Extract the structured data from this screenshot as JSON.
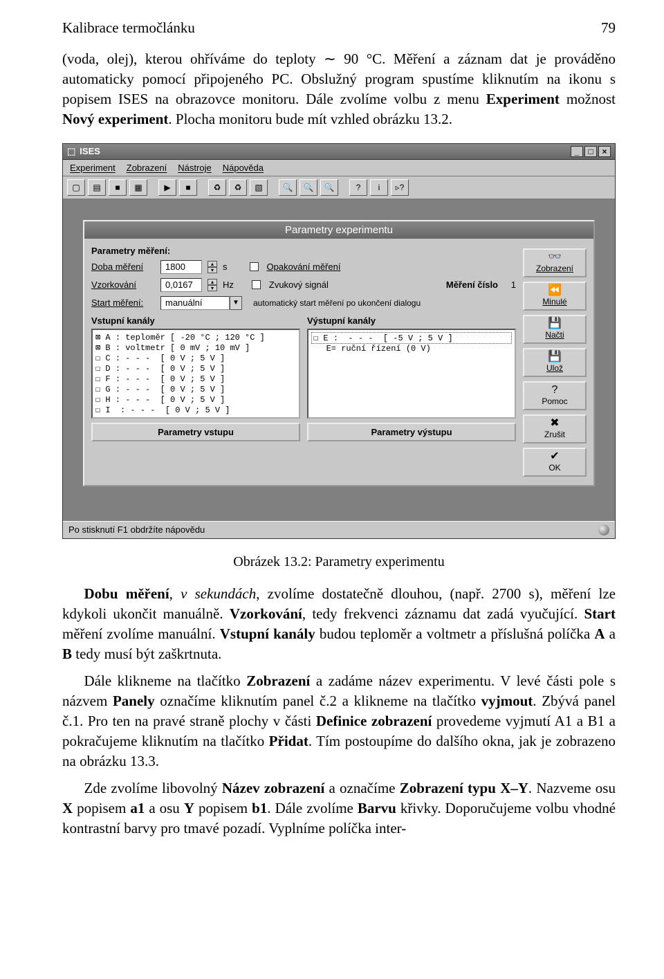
{
  "header": {
    "title": "Kalibrace termočlánku",
    "page": "79"
  },
  "para1": "(voda, olej), kterou ohříváme do teploty ∼ 90 °C. Měření a záznam dat je prováděno automaticky pomocí připojeného PC. Obslužný program spustíme kliknutím na ikonu s popisem ISES na obrazovce monitoru. Dále zvolíme volbu z menu ",
  "para1b": " možnost ",
  "para1c": ". Plocha monitoru bude mít vzhled obrázku 13.2.",
  "bold_experiment": "Experiment",
  "bold_novy": "Nový experiment",
  "app": {
    "title": "ISES",
    "menu": [
      "Experiment",
      "Zobrazení",
      "Nástroje",
      "Nápověda"
    ],
    "dialog_title": "Parametry experimentu",
    "group1": "Parametry měření:",
    "doba_label": "Doba měření",
    "doba_value": "1800",
    "doba_unit": "s",
    "opak_label": "Opakování měření",
    "vzork_label": "Vzorkování",
    "vzork_value": "0,0167",
    "vzork_unit": "Hz",
    "zvuk_label": "Zvukový signál",
    "mereni_cislo": "Měření číslo",
    "mereni_num": "1",
    "start_label": "Start měření:",
    "start_value": "manuální",
    "start_hint": "automatický start měření po ukončení dialogu",
    "vstup_title": "Vstupní kanály",
    "vystup_title": "Výstupní kanály",
    "vstup_items": [
      "⊠ A : teploměr [ -20 °C ; 120 °C ]",
      "⊠ B : voltmetr [ 0 mV ; 10 mV ]",
      "☐ C : - - -  [ 0 V ; 5 V ]",
      "☐ D : - - -  [ 0 V ; 5 V ]",
      "☐ F : - - -  [ 0 V ; 5 V ]",
      "☐ G : - - -  [ 0 V ; 5 V ]",
      "☐ H : - - -  [ 0 V ; 5 V ]",
      "☐ I  : - - -  [ 0 V ; 5 V ]"
    ],
    "vystup_item1": "☐ E :  - - -  [ -5 V ; 5 V ]",
    "vystup_item2": "   E= ruční řízení (0 V)",
    "param_vstup": "Parametry vstupu",
    "param_vystup": "Parametry výstupu",
    "side": {
      "zobraz": "Zobrazení",
      "minule": "Minulé",
      "nacti": "Načti",
      "uloz": "Ulož",
      "pomoc": "Pomoc",
      "zrusit": "Zrušit",
      "ok": "OK"
    },
    "status": "Po stisknutí F1 obdržíte nápovědu"
  },
  "caption": "Obrázek 13.2: Parametry experimentu",
  "p2a": "Dobu měření",
  "p2b": ", v sekundách",
  "p2c": ", zvolíme dostatečně dlouhou, (např. 2700 s), měření lze kdykoli ukončit manuálně. ",
  "p2d": "Vzorkování",
  "p2e": ", tedy frekvenci záznamu dat zadá vyučující. ",
  "p2f": "Start",
  "p2g": " měření zvolíme manuální. ",
  "p2h": "Vstupní kanály",
  "p2i": " budou teploměr a voltmetr a příslušná políčka ",
  "p2j": "A",
  "p2k": " a ",
  "p2l": "B",
  "p2m": " tedy musí být zaškrtnuta.",
  "p3a": "Dále klikneme na tlačítko ",
  "p3b": "Zobrazení",
  "p3c": " a zadáme název experimentu. V levé části pole s názvem ",
  "p3d": "Panely",
  "p3e": " označíme kliknutím panel č.2 a klikneme na tlačítko ",
  "p3f": "vyjmout",
  "p3g": ". Zbývá panel č.1. Pro ten na pravé straně plochy v části ",
  "p3h": "Definice zobrazení",
  "p3i": " provedeme vyjmutí A1 a B1 a pokračujeme kliknutím na tlačítko ",
  "p3j": "Přidat",
  "p3k": ". Tím postoupíme do dalšího okna, jak je zobrazeno na obrázku 13.3.",
  "p4a": "Zde zvolíme libovolný ",
  "p4b": "Název zobrazení",
  "p4c": " a označíme ",
  "p4d": "Zobrazení typu X–Y",
  "p4e": ". Nazveme osu ",
  "p4f": "X",
  "p4g": " popisem ",
  "p4h": "a1",
  "p4i": " a osu ",
  "p4j": "Y",
  "p4k": " popisem ",
  "p4l": "b1",
  "p4m": ". Dále zvolíme ",
  "p4n": "Barvu",
  "p4o": " křivky. Doporučujeme volbu vhodné kontrastní barvy pro tmavé pozadí. Vyplníme políčka inter-"
}
